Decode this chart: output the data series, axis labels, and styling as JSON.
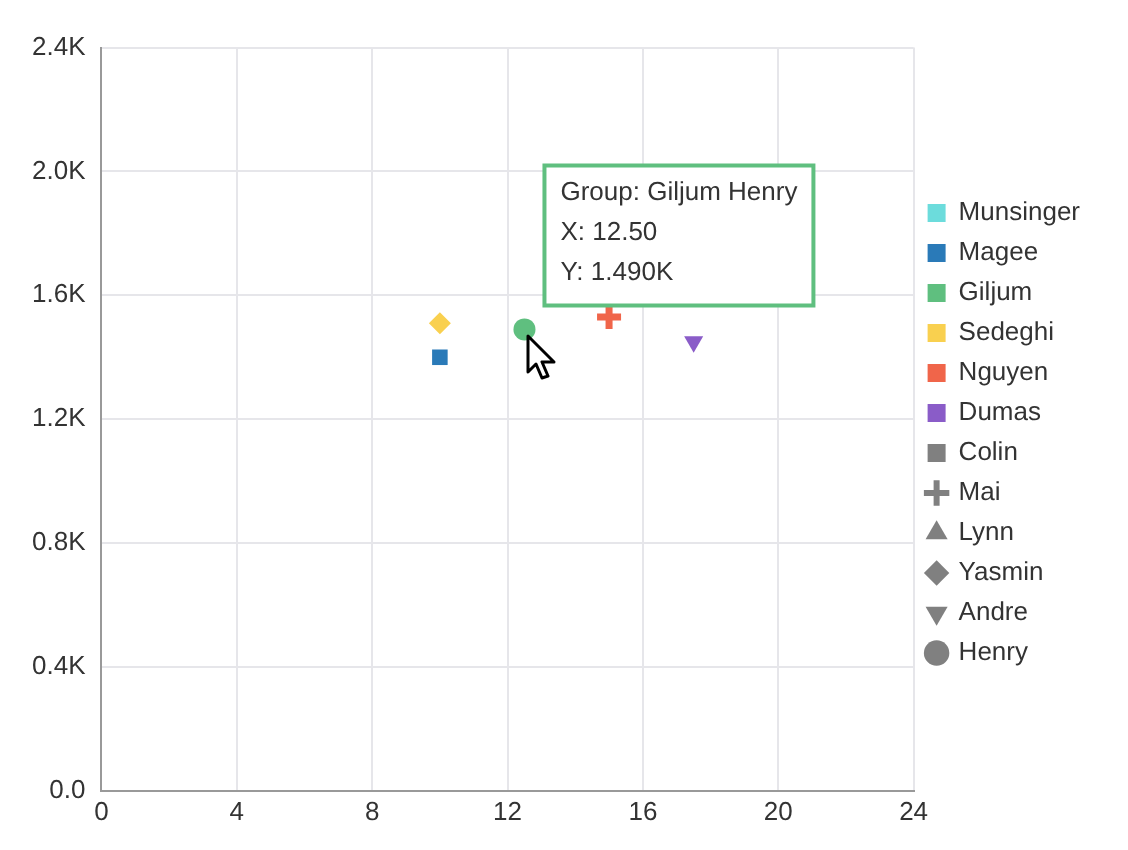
{
  "chart_data": {
    "type": "scatter",
    "series": [
      {
        "name": "Munsinger",
        "color": "#6cdcdc",
        "marker": "square"
      },
      {
        "name": "Magee",
        "color": "#2a7ab8",
        "marker": "square",
        "x": [
          10
        ],
        "values": [
          1400
        ]
      },
      {
        "name": "Giljum",
        "color": "#5fbf7f",
        "marker": "circle",
        "x": [
          12.5
        ],
        "values": [
          1490
        ]
      },
      {
        "name": "Sedeghi",
        "color": "#f9d04f",
        "marker": "diamond",
        "x": [
          10
        ],
        "values": [
          1510
        ]
      },
      {
        "name": "Nguyen",
        "color": "#f0654a",
        "marker": "cross",
        "x": [
          15
        ],
        "values": [
          1530
        ]
      },
      {
        "name": "Dumas",
        "color": "#8a5cc8",
        "marker": "triangle-down",
        "x": [
          17.5
        ],
        "values": [
          1450
        ]
      },
      {
        "name": "Colin",
        "color": "#808080",
        "marker": "square"
      },
      {
        "name": "Mai",
        "color": "#808080",
        "marker": "cross"
      },
      {
        "name": "Lynn",
        "color": "#808080",
        "marker": "triangle"
      },
      {
        "name": "Yasmin",
        "color": "#808080",
        "marker": "diamond"
      },
      {
        "name": "Andre",
        "color": "#808080",
        "marker": "triangle-down"
      },
      {
        "name": "Henry",
        "color": "#808080",
        "marker": "circle"
      }
    ],
    "xlim": [
      0,
      24
    ],
    "xticks": [
      0,
      4,
      8,
      12,
      16,
      20,
      24
    ],
    "ylim": [
      0,
      2400
    ],
    "yticks": [
      {
        "value": 0,
        "label": "0.0"
      },
      {
        "value": 400,
        "label": "0.4K"
      },
      {
        "value": 800,
        "label": "0.8K"
      },
      {
        "value": 1200,
        "label": "1.2K"
      },
      {
        "value": 1600,
        "label": "1.6K"
      },
      {
        "value": 2000,
        "label": "2.0K"
      },
      {
        "value": 2400,
        "label": "2.4K"
      }
    ],
    "annotations": [
      {
        "text": "Group: Giljum Henry\nX: 12.50\nY: 1.490K",
        "x": 12.5,
        "y": 1490
      }
    ],
    "grid": true,
    "legend": "right"
  }
}
